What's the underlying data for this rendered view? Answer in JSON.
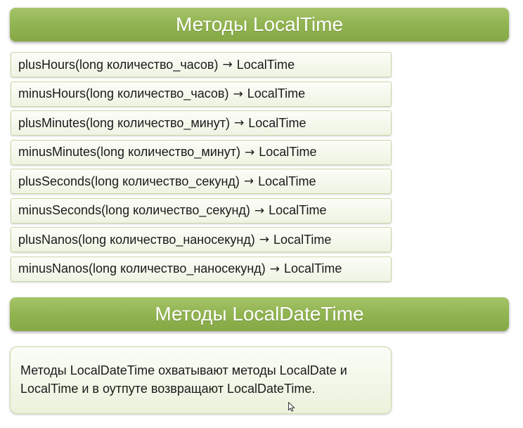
{
  "localtime_header": "Методы LocalTime",
  "methods": [
    {
      "signature": "plusHours(long количество_часов)",
      "arrow": "→",
      "returns": "LocalTime"
    },
    {
      "signature": "minusHours(long количество_часов)",
      "arrow": "→",
      "returns": "LocalTime"
    },
    {
      "signature": "plusMinutes(long количество_минут)",
      "arrow": "→",
      "returns": "LocalTime"
    },
    {
      "signature": "minusMinutes(long количество_минут)",
      "arrow": "→",
      "returns": "LocalTime"
    },
    {
      "signature": "plusSeconds(long количество_секунд)",
      "arrow": "→",
      "returns": "LocalTime"
    },
    {
      "signature": "minusSeconds(long количество_секунд)",
      "arrow": "→",
      "returns": "LocalTime"
    },
    {
      "signature": "plusNanos(long количество_наносекунд)",
      "arrow": "→",
      "returns": "LocalTime"
    },
    {
      "signature": "minusNanos(long количество_наносекунд)",
      "arrow": "→",
      "returns": "LocalTime"
    }
  ],
  "localdatetime_header": "Методы LocalDateTime",
  "localdatetime_description": {
    "line1": "Методы LocalDateTime охватывают методы LocalDate и",
    "line2": "LocalTime и в оутпуте возвращают LocalDateTime."
  },
  "icons": {
    "cursor": "mouse-pointer-icon"
  },
  "colors": {
    "banner_green": "#93b552",
    "box_border": "#c9d9a8"
  }
}
